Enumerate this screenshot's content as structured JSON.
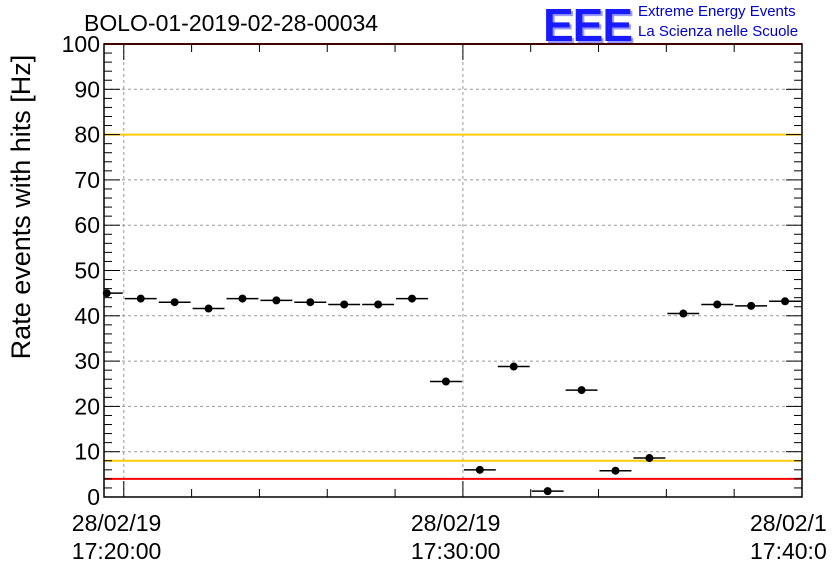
{
  "header": {
    "run_title": "BOLO-01-2019-02-28-00034",
    "logo_mark": "EEE",
    "logo_line1": "Extreme Energy Events",
    "logo_line2": "La Scienza nelle Scuole"
  },
  "colors": {
    "red_limit": "#ff0000",
    "yellow_limit": "#ffcc00",
    "marker": "#000000",
    "grid": "#999999",
    "logo": "#0000cc"
  },
  "chart_data": {
    "type": "scatter",
    "title": "BOLO-01-2019-02-28-00034",
    "ylabel": "Rate events with hits [Hz]",
    "xlabel": "",
    "ylim": [
      0,
      100
    ],
    "yticks": [
      0,
      10,
      20,
      30,
      40,
      50,
      60,
      70,
      80,
      90,
      100
    ],
    "xlim": [
      "17:19:25",
      "17:40:00"
    ],
    "xticks": [
      {
        "date": "28/02/19",
        "time": "17:20:00"
      },
      {
        "date": "28/02/19",
        "time": "17:30:00"
      },
      {
        "date": "28/02/1",
        "time": "17:40:0"
      }
    ],
    "grid": true,
    "reference_lines": [
      {
        "y": 100,
        "color": "red"
      },
      {
        "y": 80,
        "color": "yellow"
      },
      {
        "y": 8,
        "color": "yellow"
      },
      {
        "y": 4,
        "color": "red"
      }
    ],
    "points": [
      {
        "x": "17:19:30",
        "y": 45.0
      },
      {
        "x": "17:20:30",
        "y": 43.8
      },
      {
        "x": "17:21:30",
        "y": 43.0
      },
      {
        "x": "17:22:30",
        "y": 41.6
      },
      {
        "x": "17:23:30",
        "y": 43.8
      },
      {
        "x": "17:24:30",
        "y": 43.4
      },
      {
        "x": "17:25:30",
        "y": 43.0
      },
      {
        "x": "17:26:30",
        "y": 42.5
      },
      {
        "x": "17:27:30",
        "y": 42.5
      },
      {
        "x": "17:28:30",
        "y": 43.8
      },
      {
        "x": "17:29:30",
        "y": 25.5
      },
      {
        "x": "17:30:30",
        "y": 6.0
      },
      {
        "x": "17:31:30",
        "y": 28.8
      },
      {
        "x": "17:32:30",
        "y": 1.3
      },
      {
        "x": "17:33:30",
        "y": 23.6
      },
      {
        "x": "17:34:30",
        "y": 5.8
      },
      {
        "x": "17:35:30",
        "y": 8.6
      },
      {
        "x": "17:36:30",
        "y": 40.5
      },
      {
        "x": "17:37:30",
        "y": 42.5
      },
      {
        "x": "17:38:30",
        "y": 42.2
      },
      {
        "x": "17:39:30",
        "y": 43.2
      }
    ],
    "bin_width_seconds": 60
  }
}
